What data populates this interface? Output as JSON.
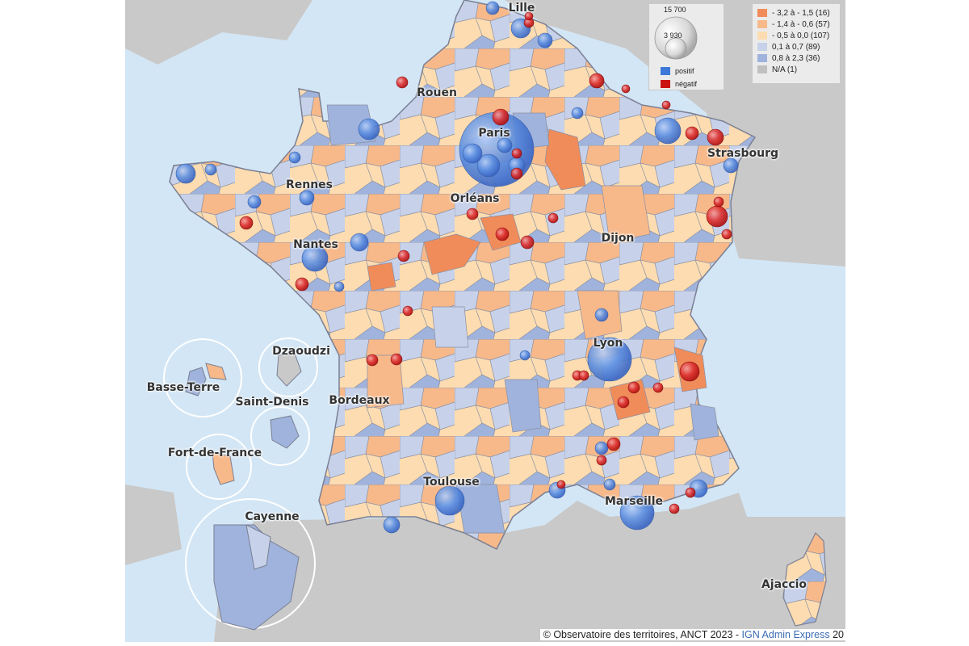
{
  "cities": [
    {
      "id": "lille",
      "label": "Lille"
    },
    {
      "id": "rouen",
      "label": "Rouen"
    },
    {
      "id": "paris",
      "label": "Paris"
    },
    {
      "id": "strasbourg",
      "label": "Strasbourg"
    },
    {
      "id": "rennes",
      "label": "Rennes"
    },
    {
      "id": "orleans",
      "label": "Orléans"
    },
    {
      "id": "nantes",
      "label": "Nantes"
    },
    {
      "id": "dijon",
      "label": "Dijon"
    },
    {
      "id": "lyon",
      "label": "Lyon"
    },
    {
      "id": "bordeaux",
      "label": "Bordeaux"
    },
    {
      "id": "toulouse",
      "label": "Toulouse"
    },
    {
      "id": "marseille",
      "label": "Marseille"
    },
    {
      "id": "ajaccio",
      "label": "Ajaccio"
    },
    {
      "id": "dzaoudzi",
      "label": "Dzaoudzi"
    },
    {
      "id": "basse-terre",
      "label": "Basse-Terre"
    },
    {
      "id": "saint-denis",
      "label": "Saint-Denis"
    },
    {
      "id": "fort-de-france",
      "label": "Fort-de-France"
    },
    {
      "id": "cayenne",
      "label": "Cayenne"
    }
  ],
  "size_legend": {
    "max_value": "15 700",
    "mid_value": "3 930",
    "positive_label": "positif",
    "negative_label": "négatif",
    "positive_color": "#3c78d8",
    "negative_color": "#cc1111"
  },
  "class_legend": [
    {
      "label": "- 3,2 à - 1,5 (16)",
      "color": "#f08c5a"
    },
    {
      "label": "- 1,4 à - 0,6 (57)",
      "color": "#f7b98a"
    },
    {
      "label": "- 0,5 à 0,0 (107)",
      "color": "#fcdcb0"
    },
    {
      "label": "0,1 à 0,7 (89)",
      "color": "#c7d2ea"
    },
    {
      "label": "0,8 à 2,3 (36)",
      "color": "#9fb3dc"
    },
    {
      "label": "N/A (1)",
      "color": "#c0c0c0"
    }
  ],
  "footer": {
    "source": "© Observatoire des territoires, ANCT 2023 - ",
    "ign": "IGN Admin Express",
    "year_fragment": " 20"
  },
  "colors": {
    "sea": "#d3e6f5",
    "neighbour": "#c9c9c9",
    "border": "#7a7f93"
  }
}
